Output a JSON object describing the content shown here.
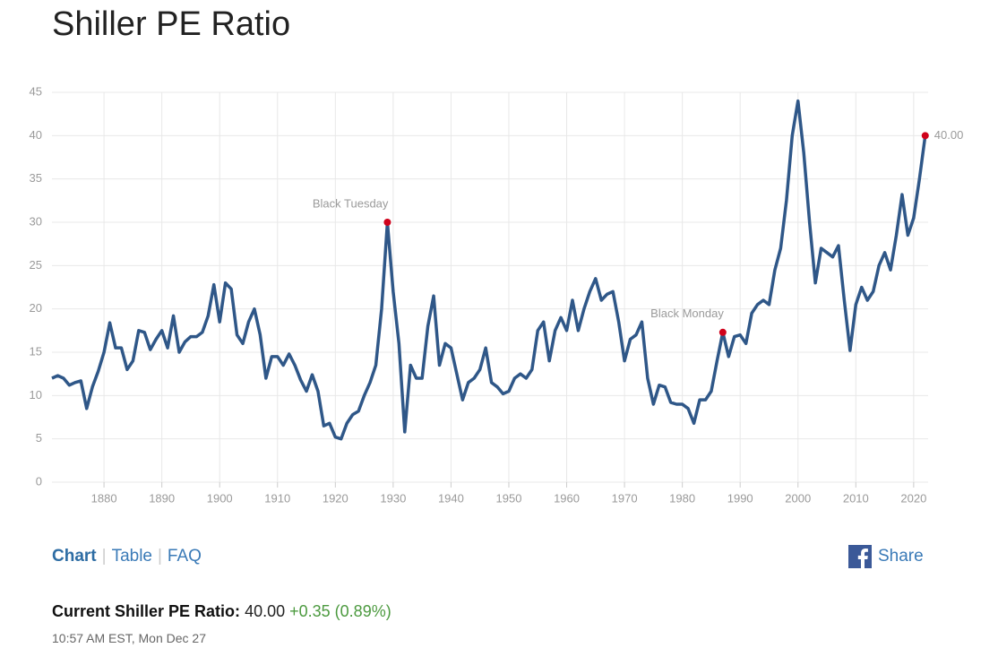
{
  "chart_data": {
    "type": "line",
    "title": "Shiller PE Ratio",
    "color": "#2f5788",
    "x": [
      1871,
      1872,
      1873,
      1874,
      1875,
      1876,
      1877,
      1878,
      1879,
      1880,
      1881,
      1882,
      1883,
      1884,
      1885,
      1886,
      1887,
      1888,
      1889,
      1890,
      1891,
      1892,
      1893,
      1894,
      1895,
      1896,
      1897,
      1898,
      1899,
      1900,
      1901,
      1902,
      1903,
      1904,
      1905,
      1906,
      1907,
      1908,
      1909,
      1910,
      1911,
      1912,
      1913,
      1914,
      1915,
      1916,
      1917,
      1918,
      1919,
      1920,
      1921,
      1922,
      1923,
      1924,
      1925,
      1926,
      1927,
      1928,
      1929,
      1930,
      1931,
      1932,
      1933,
      1934,
      1935,
      1936,
      1937,
      1938,
      1939,
      1940,
      1941,
      1942,
      1943,
      1944,
      1945,
      1946,
      1947,
      1948,
      1949,
      1950,
      1951,
      1952,
      1953,
      1954,
      1955,
      1956,
      1957,
      1958,
      1959,
      1960,
      1961,
      1962,
      1963,
      1964,
      1965,
      1966,
      1967,
      1968,
      1969,
      1970,
      1971,
      1972,
      1973,
      1974,
      1975,
      1976,
      1977,
      1978,
      1979,
      1980,
      1981,
      1982,
      1983,
      1984,
      1985,
      1986,
      1987,
      1988,
      1989,
      1990,
      1991,
      1992,
      1993,
      1994,
      1995,
      1996,
      1997,
      1998,
      1999,
      2000,
      2001,
      2002,
      2003,
      2004,
      2005,
      2006,
      2007,
      2008,
      2009,
      2010,
      2011,
      2012,
      2013,
      2014,
      2015,
      2016,
      2017,
      2018,
      2019,
      2020,
      2021,
      2022
    ],
    "values": [
      12,
      12.3,
      12,
      11.2,
      11.5,
      11.7,
      8.5,
      11,
      12.8,
      15,
      18.4,
      15.5,
      15.5,
      13,
      14,
      17.5,
      17.3,
      15.3,
      16.5,
      17.5,
      15.5,
      19.2,
      15,
      16.2,
      16.8,
      16.8,
      17.3,
      19.2,
      22.8,
      18.5,
      23,
      22.3,
      17,
      16,
      18.5,
      20,
      17,
      12,
      14.5,
      14.5,
      13.5,
      14.8,
      13.5,
      11.8,
      10.5,
      12.4,
      10.5,
      6.5,
      6.8,
      5.2,
      5,
      6.8,
      7.8,
      8.2,
      10,
      11.5,
      13.5,
      20,
      30,
      22,
      16,
      5.8,
      13.5,
      12,
      12,
      18,
      21.5,
      13.5,
      16,
      15.5,
      12.5,
      9.5,
      11.5,
      12,
      13,
      15.5,
      11.5,
      11,
      10.2,
      10.5,
      12,
      12.5,
      12,
      13,
      17.5,
      18.5,
      14,
      17.5,
      19,
      17.5,
      21,
      17.5,
      20,
      22,
      23.5,
      21,
      21.7,
      22,
      18.5,
      14,
      16.5,
      17,
      18.5,
      12,
      9,
      11.2,
      11,
      9.2,
      9,
      9,
      8.5,
      6.8,
      9.5,
      9.5,
      10.5,
      14,
      17.3,
      14.5,
      16.8,
      17,
      16,
      19.5,
      20.5,
      21,
      20.5,
      24.5,
      27,
      32.5,
      40,
      44,
      38,
      30,
      23,
      27,
      26.5,
      26,
      27.3,
      21,
      15.2,
      20.5,
      22.5,
      21,
      22,
      25,
      26.5,
      24.5,
      28.5,
      33.2,
      28.5,
      30.5,
      35,
      40
    ],
    "xlim": [
      1871,
      2022.5
    ],
    "ylim": [
      0,
      45
    ],
    "xticks": [
      1880,
      1890,
      1900,
      1910,
      1920,
      1930,
      1940,
      1950,
      1960,
      1970,
      1980,
      1990,
      2000,
      2010,
      2020
    ],
    "yticks": [
      0,
      5,
      10,
      15,
      20,
      25,
      30,
      35,
      40,
      45
    ],
    "grid": true,
    "annotations": [
      {
        "label": "Black Tuesday",
        "x": 1929,
        "y": 30
      },
      {
        "label": "Black Monday",
        "x": 1987,
        "y": 17.3
      },
      {
        "label": "40.00",
        "x": 2022,
        "y": 40
      }
    ],
    "annotation_color": "#d0021b"
  },
  "tabs": [
    "Chart",
    "Table",
    "FAQ"
  ],
  "share": "Share",
  "current": {
    "label": "Current Shiller PE Ratio:",
    "value": "40.00",
    "change": "+0.35 (0.89%)",
    "timestamp": "10:57 AM EST, Mon Dec 27"
  }
}
